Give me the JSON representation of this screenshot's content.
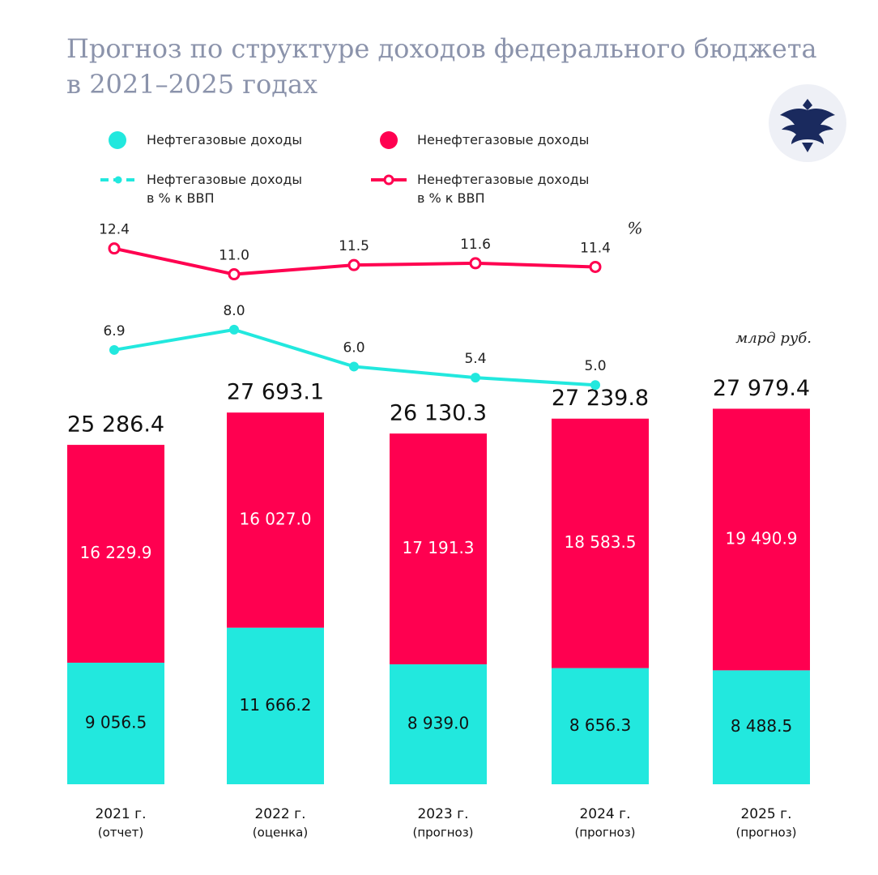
{
  "chart_data": [
    {
      "type": "stacked_bar",
      "title": "Прогноз по структуре доходов федерального бюджета\nв 2021–2025 годах",
      "unit_label": "млрд руб.",
      "categories": [
        "2021 г.",
        "2022 г.",
        "2023 г.",
        "2024 г.",
        "2025 г."
      ],
      "category_notes": [
        "(отчет)",
        "(оценка)",
        "(прогноз)",
        "(прогноз)",
        "(прогноз)"
      ],
      "ylim": [
        0,
        30000
      ],
      "series": [
        {
          "name": "Нефтегазовые доходы",
          "color": "#22e8de",
          "label_color": "#111111",
          "values": [
            9056.5,
            11666.2,
            8939.0,
            8656.3,
            8488.5
          ],
          "value_labels": [
            "9 056.5",
            "11 666.2",
            "8 939.0",
            "8 656.3",
            "8 488.5"
          ]
        },
        {
          "name": "Ненефтегазовые доходы",
          "color": "#ff0050",
          "label_color": "#ffffff",
          "values": [
            16229.9,
            16027.0,
            17191.3,
            18583.5,
            19490.9
          ],
          "value_labels": [
            "16 229.9",
            "16 027.0",
            "17 191.3",
            "18 583.5",
            "19 490.9"
          ]
        }
      ],
      "totals": [
        25286.4,
        27693.1,
        26130.3,
        27239.8,
        27979.4
      ],
      "total_labels": [
        "25 286.4",
        "27 693.1",
        "26 130.3",
        "27 239.8",
        "27 979.4"
      ]
    },
    {
      "type": "line",
      "unit_label": "%",
      "ylim": [
        4,
        13
      ],
      "series": [
        {
          "name": "Нефтегазовые доходы\nв % к ВВП",
          "color": "#22e8de",
          "marker": "filled",
          "values": [
            6.9,
            8.0,
            6.0,
            5.4,
            5.0
          ],
          "value_labels": [
            "6.9",
            "8.0",
            "6.0",
            "5.4",
            "5.0"
          ]
        },
        {
          "name": "Ненефтегазовые доходы\nв % к ВВП",
          "color": "#ff0050",
          "marker": "hollow",
          "values": [
            12.4,
            11.0,
            11.5,
            11.6,
            11.4
          ],
          "value_labels": [
            "12.4",
            "11.0",
            "11.5",
            "11.6",
            "11.4"
          ]
        }
      ]
    }
  ]
}
